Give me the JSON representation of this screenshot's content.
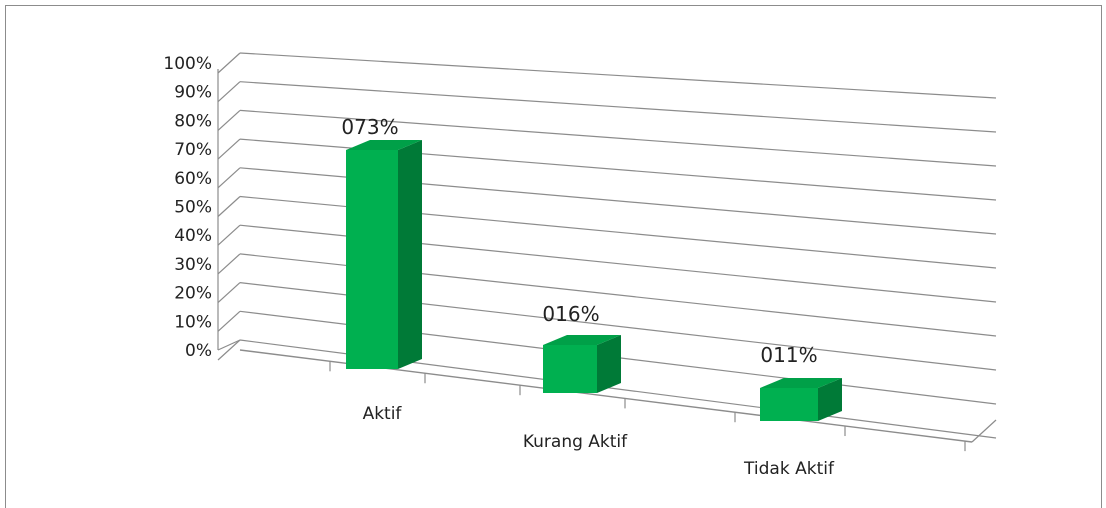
{
  "chart_data": {
    "type": "bar",
    "categories": [
      "Aktif",
      "Kurang Aktif",
      "Tidak Aktif"
    ],
    "values": [
      73,
      16,
      11
    ],
    "data_labels": [
      "073%",
      "016%",
      "011%"
    ],
    "y_ticks": [
      "0%",
      "10%",
      "20%",
      "30%",
      "40%",
      "50%",
      "60%",
      "70%",
      "80%",
      "90%",
      "100%"
    ],
    "ylim": [
      0,
      100
    ],
    "grid": true,
    "legend": "none",
    "colors": {
      "bar_front": "#00b050",
      "bar_top": "#00a048",
      "bar_side": "#007a37",
      "grid": "#8c8c8c"
    }
  }
}
